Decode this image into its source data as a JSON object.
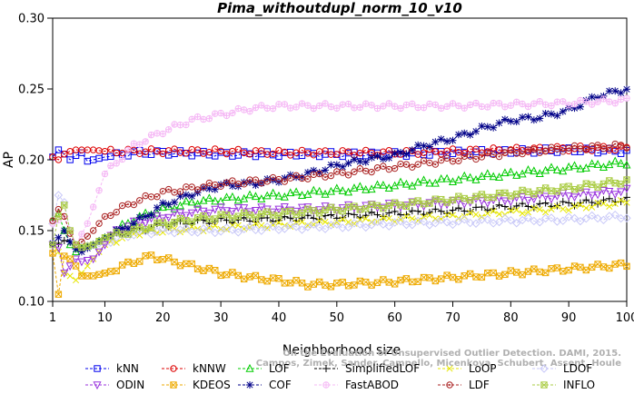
{
  "chart_data": {
    "type": "line",
    "title": "Pima_withoutdupl_norm_10_v10",
    "xlabel": "Neighborhood size",
    "ylabel": "AP",
    "xlim": [
      1,
      100
    ],
    "ylim": [
      0.1,
      0.3
    ],
    "x_ticks": [
      1,
      10,
      20,
      30,
      40,
      50,
      60,
      70,
      80,
      90,
      100
    ],
    "y_ticks": [
      "0.10",
      "0.15",
      "0.20",
      "0.25",
      "0.30"
    ],
    "grid": false,
    "legend_position": "bottom",
    "watermark": "Campos, Zimek, Sander, Campello, Micenkova, Schubert, Assent, Houle",
    "watermark_top": "On the Evaluation of Unsupervised Outlier Detection. DAMI, 2015.",
    "series": [
      {
        "name": "kNN",
        "color": "#0000ee",
        "marker": "square",
        "points": [
          [
            1,
            0.202
          ],
          [
            2,
            0.207
          ],
          [
            3,
            0.204
          ],
          [
            4,
            0.2
          ],
          [
            5,
            0.203
          ],
          [
            6,
            0.205
          ],
          [
            7,
            0.199
          ],
          [
            8,
            0.2
          ],
          [
            10,
            0.202
          ],
          [
            15,
            0.205
          ],
          [
            20,
            0.205
          ],
          [
            30,
            0.204
          ],
          [
            40,
            0.204
          ],
          [
            50,
            0.204
          ],
          [
            60,
            0.204
          ],
          [
            70,
            0.205
          ],
          [
            80,
            0.206
          ],
          [
            90,
            0.207
          ],
          [
            100,
            0.206
          ]
        ]
      },
      {
        "name": "kNNW",
        "color": "#dd0000",
        "marker": "circle",
        "points": [
          [
            1,
            0.202
          ],
          [
            2,
            0.2
          ],
          [
            3,
            0.204
          ],
          [
            4,
            0.206
          ],
          [
            5,
            0.207
          ],
          [
            8,
            0.207
          ],
          [
            10,
            0.206
          ],
          [
            20,
            0.206
          ],
          [
            30,
            0.206
          ],
          [
            40,
            0.205
          ],
          [
            50,
            0.205
          ],
          [
            60,
            0.205
          ],
          [
            70,
            0.206
          ],
          [
            80,
            0.207
          ],
          [
            90,
            0.208
          ],
          [
            100,
            0.208
          ]
        ]
      },
      {
        "name": "LOF",
        "color": "#00cc00",
        "marker": "triangle-up",
        "points": [
          [
            1,
            0.157
          ],
          [
            2,
            0.162
          ],
          [
            3,
            0.15
          ],
          [
            4,
            0.14
          ],
          [
            5,
            0.135
          ],
          [
            6,
            0.138
          ],
          [
            8,
            0.14
          ],
          [
            10,
            0.145
          ],
          [
            12,
            0.15
          ],
          [
            15,
            0.158
          ],
          [
            20,
            0.165
          ],
          [
            25,
            0.17
          ],
          [
            30,
            0.172
          ],
          [
            40,
            0.175
          ],
          [
            50,
            0.178
          ],
          [
            60,
            0.182
          ],
          [
            70,
            0.186
          ],
          [
            80,
            0.19
          ],
          [
            90,
            0.194
          ],
          [
            100,
            0.198
          ]
        ]
      },
      {
        "name": "SimplifiedLOF",
        "color": "#000000",
        "marker": "plus",
        "points": [
          [
            1,
            0.14
          ],
          [
            2,
            0.141
          ],
          [
            3,
            0.143
          ],
          [
            4,
            0.142
          ],
          [
            5,
            0.138
          ],
          [
            6,
            0.137
          ],
          [
            8,
            0.14
          ],
          [
            10,
            0.145
          ],
          [
            15,
            0.15
          ],
          [
            20,
            0.154
          ],
          [
            25,
            0.156
          ],
          [
            30,
            0.157
          ],
          [
            40,
            0.158
          ],
          [
            50,
            0.16
          ],
          [
            60,
            0.162
          ],
          [
            70,
            0.164
          ],
          [
            80,
            0.167
          ],
          [
            90,
            0.169
          ],
          [
            100,
            0.172
          ]
        ]
      },
      {
        "name": "LoOP",
        "color": "#e6e600",
        "marker": "x",
        "points": [
          [
            1,
            0.14
          ],
          [
            2,
            0.135
          ],
          [
            3,
            0.12
          ],
          [
            4,
            0.118
          ],
          [
            5,
            0.115
          ],
          [
            6,
            0.12
          ],
          [
            8,
            0.13
          ],
          [
            10,
            0.14
          ],
          [
            15,
            0.148
          ],
          [
            20,
            0.15
          ],
          [
            30,
            0.152
          ],
          [
            40,
            0.154
          ],
          [
            50,
            0.156
          ],
          [
            60,
            0.158
          ],
          [
            70,
            0.16
          ],
          [
            80,
            0.163
          ],
          [
            90,
            0.166
          ],
          [
            100,
            0.17
          ]
        ]
      },
      {
        "name": "LDOF",
        "color": "#c8c8f8",
        "marker": "diamond",
        "points": [
          [
            1,
            0.155
          ],
          [
            2,
            0.175
          ],
          [
            3,
            0.17
          ],
          [
            4,
            0.15
          ],
          [
            5,
            0.14
          ],
          [
            6,
            0.138
          ],
          [
            8,
            0.14
          ],
          [
            10,
            0.142
          ],
          [
            15,
            0.148
          ],
          [
            20,
            0.15
          ],
          [
            30,
            0.15
          ],
          [
            40,
            0.152
          ],
          [
            50,
            0.153
          ],
          [
            60,
            0.155
          ],
          [
            70,
            0.156
          ],
          [
            80,
            0.157
          ],
          [
            90,
            0.158
          ],
          [
            100,
            0.16
          ]
        ]
      },
      {
        "name": "ODIN",
        "color": "#9933dd",
        "marker": "triangle-down",
        "points": [
          [
            1,
            0.14
          ],
          [
            2,
            0.138
          ],
          [
            3,
            0.12
          ],
          [
            4,
            0.125
          ],
          [
            5,
            0.13
          ],
          [
            6,
            0.128
          ],
          [
            8,
            0.13
          ],
          [
            10,
            0.14
          ],
          [
            12,
            0.15
          ],
          [
            15,
            0.155
          ],
          [
            20,
            0.16
          ],
          [
            25,
            0.163
          ],
          [
            30,
            0.165
          ],
          [
            40,
            0.165
          ],
          [
            50,
            0.166
          ],
          [
            60,
            0.168
          ],
          [
            70,
            0.17
          ],
          [
            80,
            0.172
          ],
          [
            90,
            0.175
          ],
          [
            100,
            0.178
          ]
        ]
      },
      {
        "name": "KDEOS",
        "color": "#eeaa00",
        "marker": "square-x",
        "points": [
          [
            1,
            0.134
          ],
          [
            2,
            0.105
          ],
          [
            3,
            0.132
          ],
          [
            4,
            0.13
          ],
          [
            5,
            0.125
          ],
          [
            6,
            0.118
          ],
          [
            8,
            0.118
          ],
          [
            10,
            0.12
          ],
          [
            15,
            0.128
          ],
          [
            18,
            0.132
          ],
          [
            20,
            0.13
          ],
          [
            25,
            0.125
          ],
          [
            30,
            0.12
          ],
          [
            35,
            0.117
          ],
          [
            40,
            0.115
          ],
          [
            45,
            0.112
          ],
          [
            50,
            0.112
          ],
          [
            60,
            0.114
          ],
          [
            70,
            0.117
          ],
          [
            80,
            0.12
          ],
          [
            90,
            0.123
          ],
          [
            100,
            0.126
          ]
        ]
      },
      {
        "name": "COF",
        "color": "#000088",
        "marker": "asterisk",
        "points": [
          [
            1,
            0.141
          ],
          [
            2,
            0.145
          ],
          [
            3,
            0.15
          ],
          [
            4,
            0.142
          ],
          [
            5,
            0.137
          ],
          [
            6,
            0.135
          ],
          [
            8,
            0.14
          ],
          [
            10,
            0.145
          ],
          [
            15,
            0.155
          ],
          [
            20,
            0.168
          ],
          [
            25,
            0.176
          ],
          [
            30,
            0.182
          ],
          [
            35,
            0.183
          ],
          [
            40,
            0.186
          ],
          [
            45,
            0.19
          ],
          [
            50,
            0.196
          ],
          [
            55,
            0.2
          ],
          [
            60,
            0.203
          ],
          [
            65,
            0.21
          ],
          [
            70,
            0.215
          ],
          [
            75,
            0.222
          ],
          [
            80,
            0.228
          ],
          [
            85,
            0.23
          ],
          [
            90,
            0.235
          ],
          [
            95,
            0.245
          ],
          [
            100,
            0.25
          ]
        ]
      },
      {
        "name": "FastABOD",
        "color": "#f5b8f5",
        "marker": "circle-plus",
        "points": [
          [
            1,
            0.155
          ],
          [
            3,
            0.16
          ],
          [
            5,
            0.14
          ],
          [
            7,
            0.155
          ],
          [
            10,
            0.19
          ],
          [
            15,
            0.21
          ],
          [
            20,
            0.22
          ],
          [
            25,
            0.228
          ],
          [
            30,
            0.232
          ],
          [
            35,
            0.236
          ],
          [
            40,
            0.238
          ],
          [
            50,
            0.238
          ],
          [
            60,
            0.238
          ],
          [
            70,
            0.238
          ],
          [
            80,
            0.239
          ],
          [
            90,
            0.24
          ],
          [
            100,
            0.242
          ]
        ]
      },
      {
        "name": "LDF",
        "color": "#aa2222",
        "marker": "circle-dot",
        "points": [
          [
            1,
            0.157
          ],
          [
            2,
            0.165
          ],
          [
            3,
            0.16
          ],
          [
            4,
            0.148
          ],
          [
            5,
            0.14
          ],
          [
            6,
            0.142
          ],
          [
            8,
            0.15
          ],
          [
            10,
            0.16
          ],
          [
            15,
            0.17
          ],
          [
            20,
            0.177
          ],
          [
            25,
            0.18
          ],
          [
            30,
            0.183
          ],
          [
            40,
            0.186
          ],
          [
            50,
            0.19
          ],
          [
            60,
            0.195
          ],
          [
            70,
            0.2
          ],
          [
            80,
            0.205
          ],
          [
            90,
            0.208
          ],
          [
            100,
            0.21
          ]
        ]
      },
      {
        "name": "INFLO",
        "color": "#aacc44",
        "marker": "square-star",
        "points": [
          [
            1,
            0.14
          ],
          [
            2,
            0.16
          ],
          [
            3,
            0.168
          ],
          [
            4,
            0.15
          ],
          [
            5,
            0.14
          ],
          [
            6,
            0.138
          ],
          [
            8,
            0.14
          ],
          [
            10,
            0.145
          ],
          [
            15,
            0.15
          ],
          [
            20,
            0.155
          ],
          [
            25,
            0.158
          ],
          [
            30,
            0.16
          ],
          [
            40,
            0.162
          ],
          [
            50,
            0.165
          ],
          [
            60,
            0.168
          ],
          [
            70,
            0.172
          ],
          [
            80,
            0.176
          ],
          [
            90,
            0.18
          ],
          [
            100,
            0.185
          ]
        ]
      }
    ]
  }
}
